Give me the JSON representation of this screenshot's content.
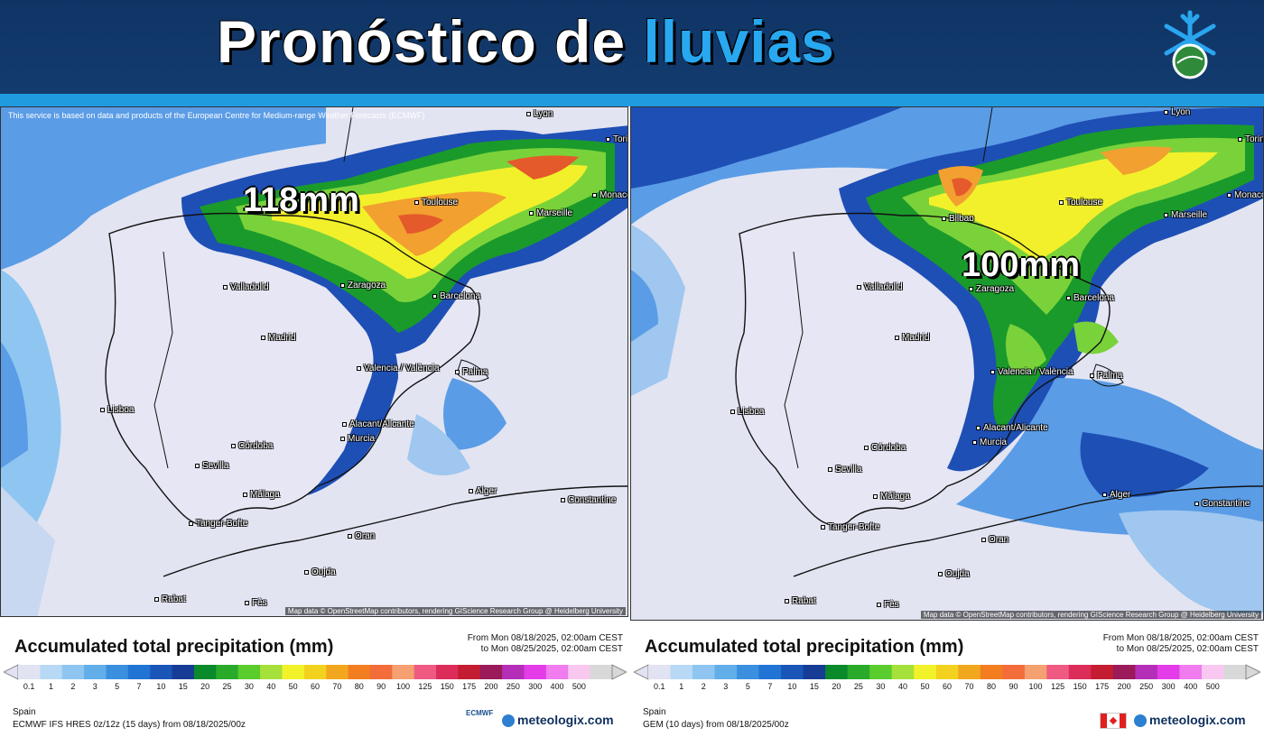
{
  "header": {
    "title_part1": "Pronóstico de",
    "title_part2": "lluvias",
    "colors": {
      "background": "#0f3566",
      "accent": "#27a8f0"
    },
    "logo_icon": "snowflake-icon"
  },
  "panels": [
    {
      "notice": "This service is based on data and products of the European Centre for Medium-range Weather Forecasts (ECMWF)",
      "max_label": "118mm",
      "attribution": "Map data © OpenStreetMap contributors, rendering GIScience Research Group @ Heidelberg University",
      "cities": [
        "Lyon",
        "Torin",
        "Monaco",
        "Toulouse",
        "Marseille",
        "Valladolid",
        "Zaragoza",
        "Barcelona",
        "Madrid",
        "Valencia / València",
        "Palma",
        "Lisboa",
        "Alacant/Alicante",
        "Murcia",
        "Córdoba",
        "Sevilla",
        "Málaga",
        "Tanger-Bofte",
        "Alger",
        "Constantine",
        "Oran",
        "Oujda",
        "Rabat",
        "Fès"
      ],
      "legend": {
        "title": "Accumulated total precipitation (mm)",
        "period_from": "From Mon 08/18/2025, 02:00am CEST",
        "period_to": "to Mon 08/25/2025, 02:00am CEST",
        "region": "Spain",
        "model": "ECMWF IFS HRES 0z/12z (15 days) from 08/18/2025/00z",
        "brand": "meteologix.com",
        "model_logo": "ECMWF"
      }
    },
    {
      "max_label": "100mm",
      "attribution": "Map data © OpenStreetMap contributors, rendering GIScience Research Group @ Heidelberg University",
      "cities": [
        "Lyon",
        "Torin",
        "Monaco",
        "Toulouse",
        "Bilbao",
        "Marseille",
        "Valladolid",
        "Zaragoza",
        "Barcelona",
        "Madrid",
        "Valencia / València",
        "Palma",
        "Lisboa",
        "Alacant/Alicante",
        "Murcia",
        "Córdoba",
        "Sevilla",
        "Málaga",
        "Tanger-Bofte",
        "Alger",
        "Constantine",
        "Oran",
        "Oujda",
        "Rabat",
        "Fès"
      ],
      "legend": {
        "title": "Accumulated total precipitation (mm)",
        "period_from": "From Mon 08/18/2025, 02:00am CEST",
        "period_to": "to Mon 08/25/2025, 02:00am CEST",
        "region": "Spain",
        "model": "GEM (10 days) from 08/18/2025/00z",
        "brand": "meteologix.com",
        "model_logo": "canada-flag-icon"
      }
    }
  ],
  "scale": {
    "ticks": [
      "0.1",
      "1",
      "2",
      "3",
      "5",
      "7",
      "10",
      "15",
      "20",
      "25",
      "30",
      "40",
      "50",
      "60",
      "70",
      "80",
      "90",
      "100",
      "125",
      "150",
      "175",
      "200",
      "250",
      "300",
      "400",
      "500"
    ],
    "colors": [
      "#e1e3f3",
      "#b7d9f6",
      "#8ec6f1",
      "#62aee9",
      "#3b8fdf",
      "#2074d3",
      "#1a56b8",
      "#173c95",
      "#0a8a2a",
      "#2aaa2a",
      "#5acc2e",
      "#a6e03a",
      "#f2f22a",
      "#f2d21f",
      "#f2a81e",
      "#f27e20",
      "#f26d3a",
      "#f4a070",
      "#ee5a82",
      "#dc2c5a",
      "#c41c30",
      "#9a1a5a",
      "#b42eb8",
      "#e43ce8",
      "#f07cf0",
      "#f8c8f0",
      "#d8d8d8"
    ],
    "map_colors": {
      "sea_light": "#e2e4f2",
      "very_light": "#c8d8f0",
      "light_blue": "#9fc7ef",
      "blue": "#5a9ce6",
      "dark_blue": "#1e4fb5",
      "green": "#1a9a2a",
      "light_green": "#7ad23a",
      "yellow": "#f2f02a",
      "orange": "#f2a030",
      "red": "#e45a2a"
    }
  }
}
